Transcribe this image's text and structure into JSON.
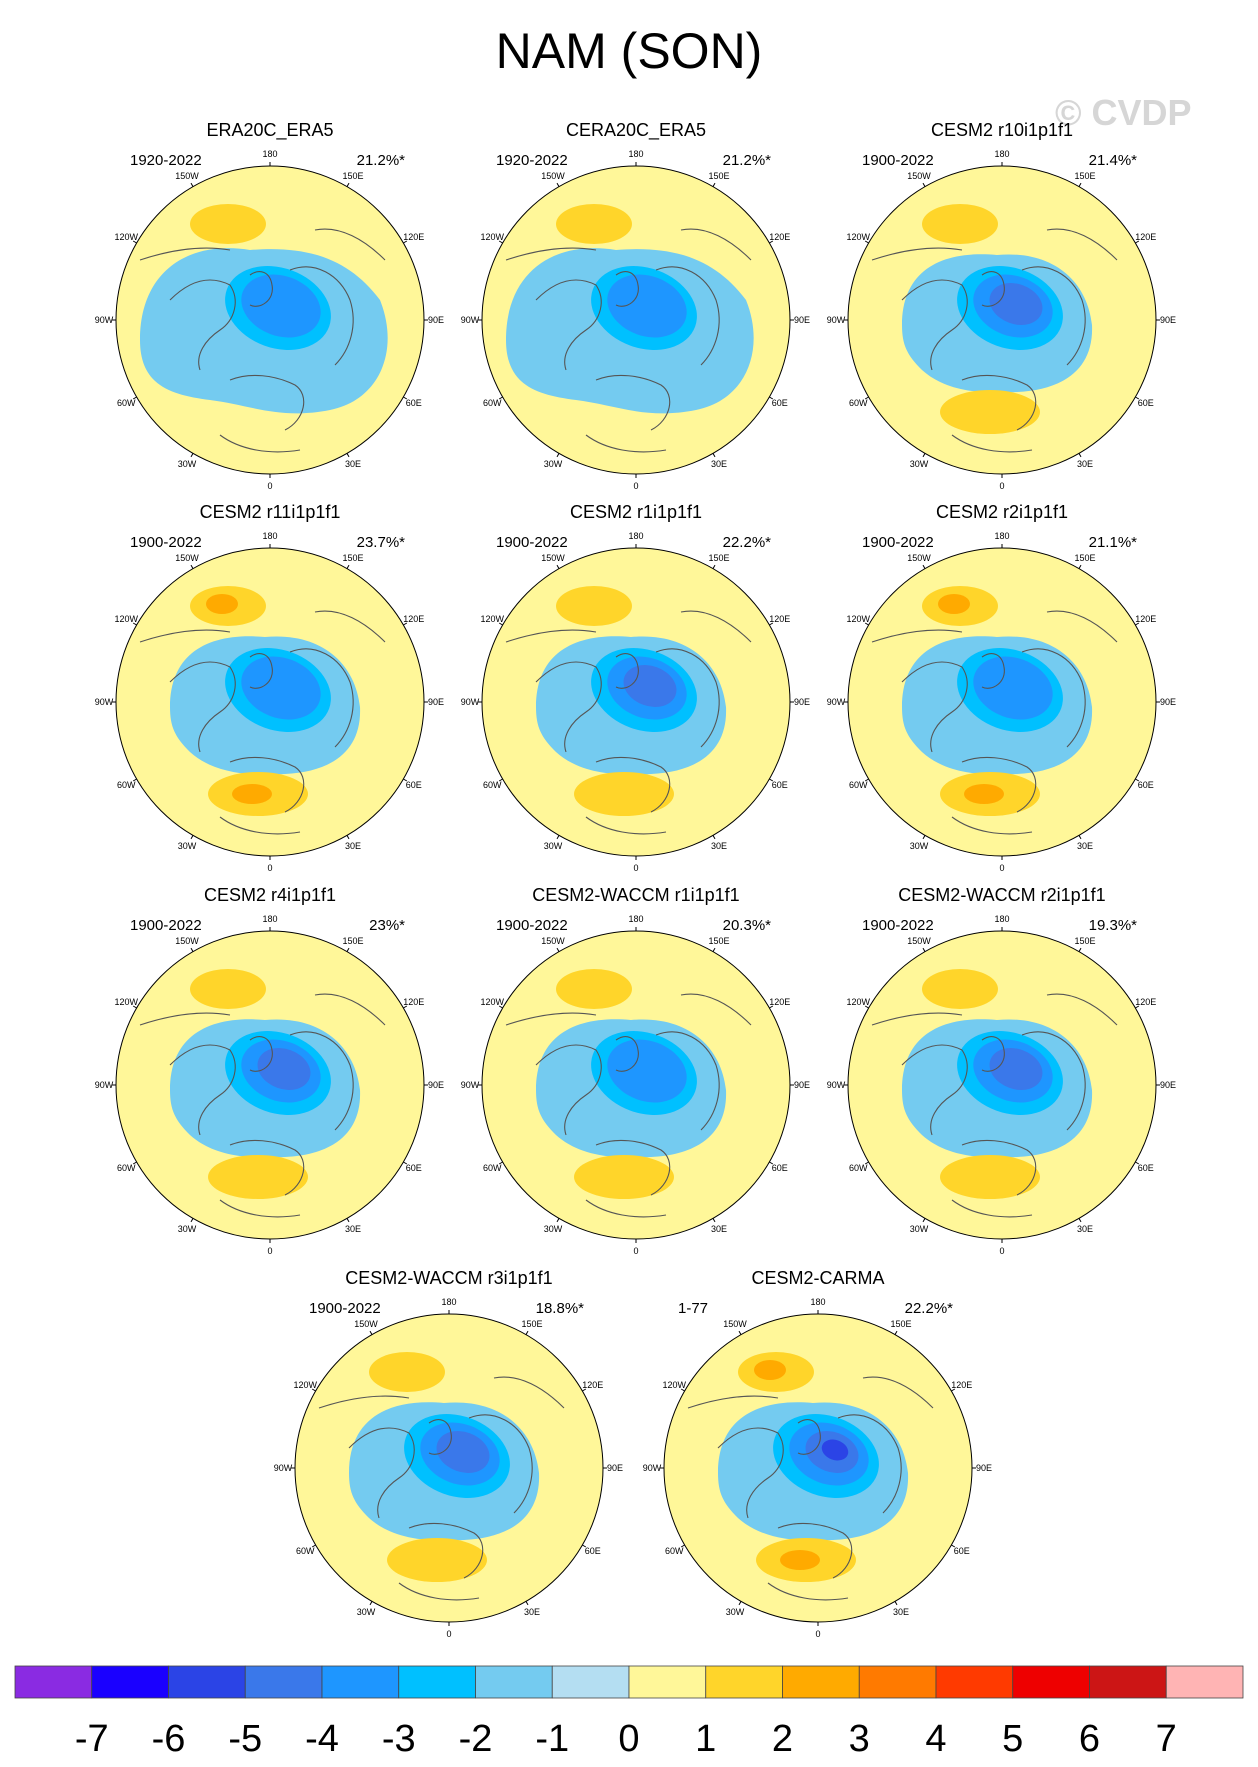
{
  "title": "NAM (SON)",
  "watermark": "© CVDP",
  "map_labels": {
    "top": "180",
    "bottom": "0",
    "left": "90W",
    "right": "90E",
    "upper_left_1": "150W",
    "upper_left_2": "120W",
    "upper_right_1": "150E",
    "upper_right_2": "120E",
    "lower_left_1": "60W",
    "lower_left_2": "30W",
    "lower_right_1": "60E",
    "lower_right_2": "30E"
  },
  "panels": [
    {
      "title": "ERA20C_ERA5",
      "years": "1920-2022",
      "pct": "21.2%*",
      "max_neg": -3,
      "max_pos": 1,
      "style": "obs"
    },
    {
      "title": "CERA20C_ERA5",
      "years": "1920-2022",
      "pct": "21.2%*",
      "max_neg": -3,
      "max_pos": 1,
      "style": "obs"
    },
    {
      "title": "CESM2 r10i1p1f1",
      "years": "1900-2022",
      "pct": "21.4%*",
      "max_neg": -4,
      "max_pos": 1,
      "style": "model"
    },
    {
      "title": "CESM2 r11i1p1f1",
      "years": "1900-2022",
      "pct": "23.7%*",
      "max_neg": -3,
      "max_pos": 2,
      "style": "model"
    },
    {
      "title": "CESM2 r1i1p1f1",
      "years": "1900-2022",
      "pct": "22.2%*",
      "max_neg": -4,
      "max_pos": 1,
      "style": "model"
    },
    {
      "title": "CESM2 r2i1p1f1",
      "years": "1900-2022",
      "pct": "21.1%*",
      "max_neg": -3,
      "max_pos": 2,
      "style": "model"
    },
    {
      "title": "CESM2 r4i1p1f1",
      "years": "1900-2022",
      "pct": "23%*",
      "max_neg": -4,
      "max_pos": 1,
      "style": "model"
    },
    {
      "title": "CESM2-WACCM r1i1p1f1",
      "years": "1900-2022",
      "pct": "20.3%*",
      "max_neg": -3,
      "max_pos": 1,
      "style": "model"
    },
    {
      "title": "CESM2-WACCM r2i1p1f1",
      "years": "1900-2022",
      "pct": "19.3%*",
      "max_neg": -4,
      "max_pos": 1,
      "style": "model"
    },
    {
      "title": "CESM2-WACCM r3i1p1f1",
      "years": "1900-2022",
      "pct": "18.8%*",
      "max_neg": -4,
      "max_pos": 1,
      "style": "model"
    },
    {
      "title": "CESM2-CARMA",
      "years": "1-77",
      "pct": "22.2%*",
      "max_neg": -5,
      "max_pos": 2,
      "style": "model"
    }
  ],
  "colorbar": {
    "colors": [
      "#8a2be2",
      "#1a00ff",
      "#2b44e6",
      "#3a78ea",
      "#1e96ff",
      "#00c0ff",
      "#74cbf0",
      "#b4def2",
      "#fff799",
      "#ffd52a",
      "#ffaa00",
      "#ff7a00",
      "#ff3a00",
      "#ee0000",
      "#cc1515",
      "#ffb4b4"
    ],
    "labels": [
      "-7",
      "-6",
      "-5",
      "-4",
      "-3",
      "-2",
      "-1",
      "0",
      "1",
      "2",
      "3",
      "4",
      "5",
      "6",
      "7"
    ]
  }
}
